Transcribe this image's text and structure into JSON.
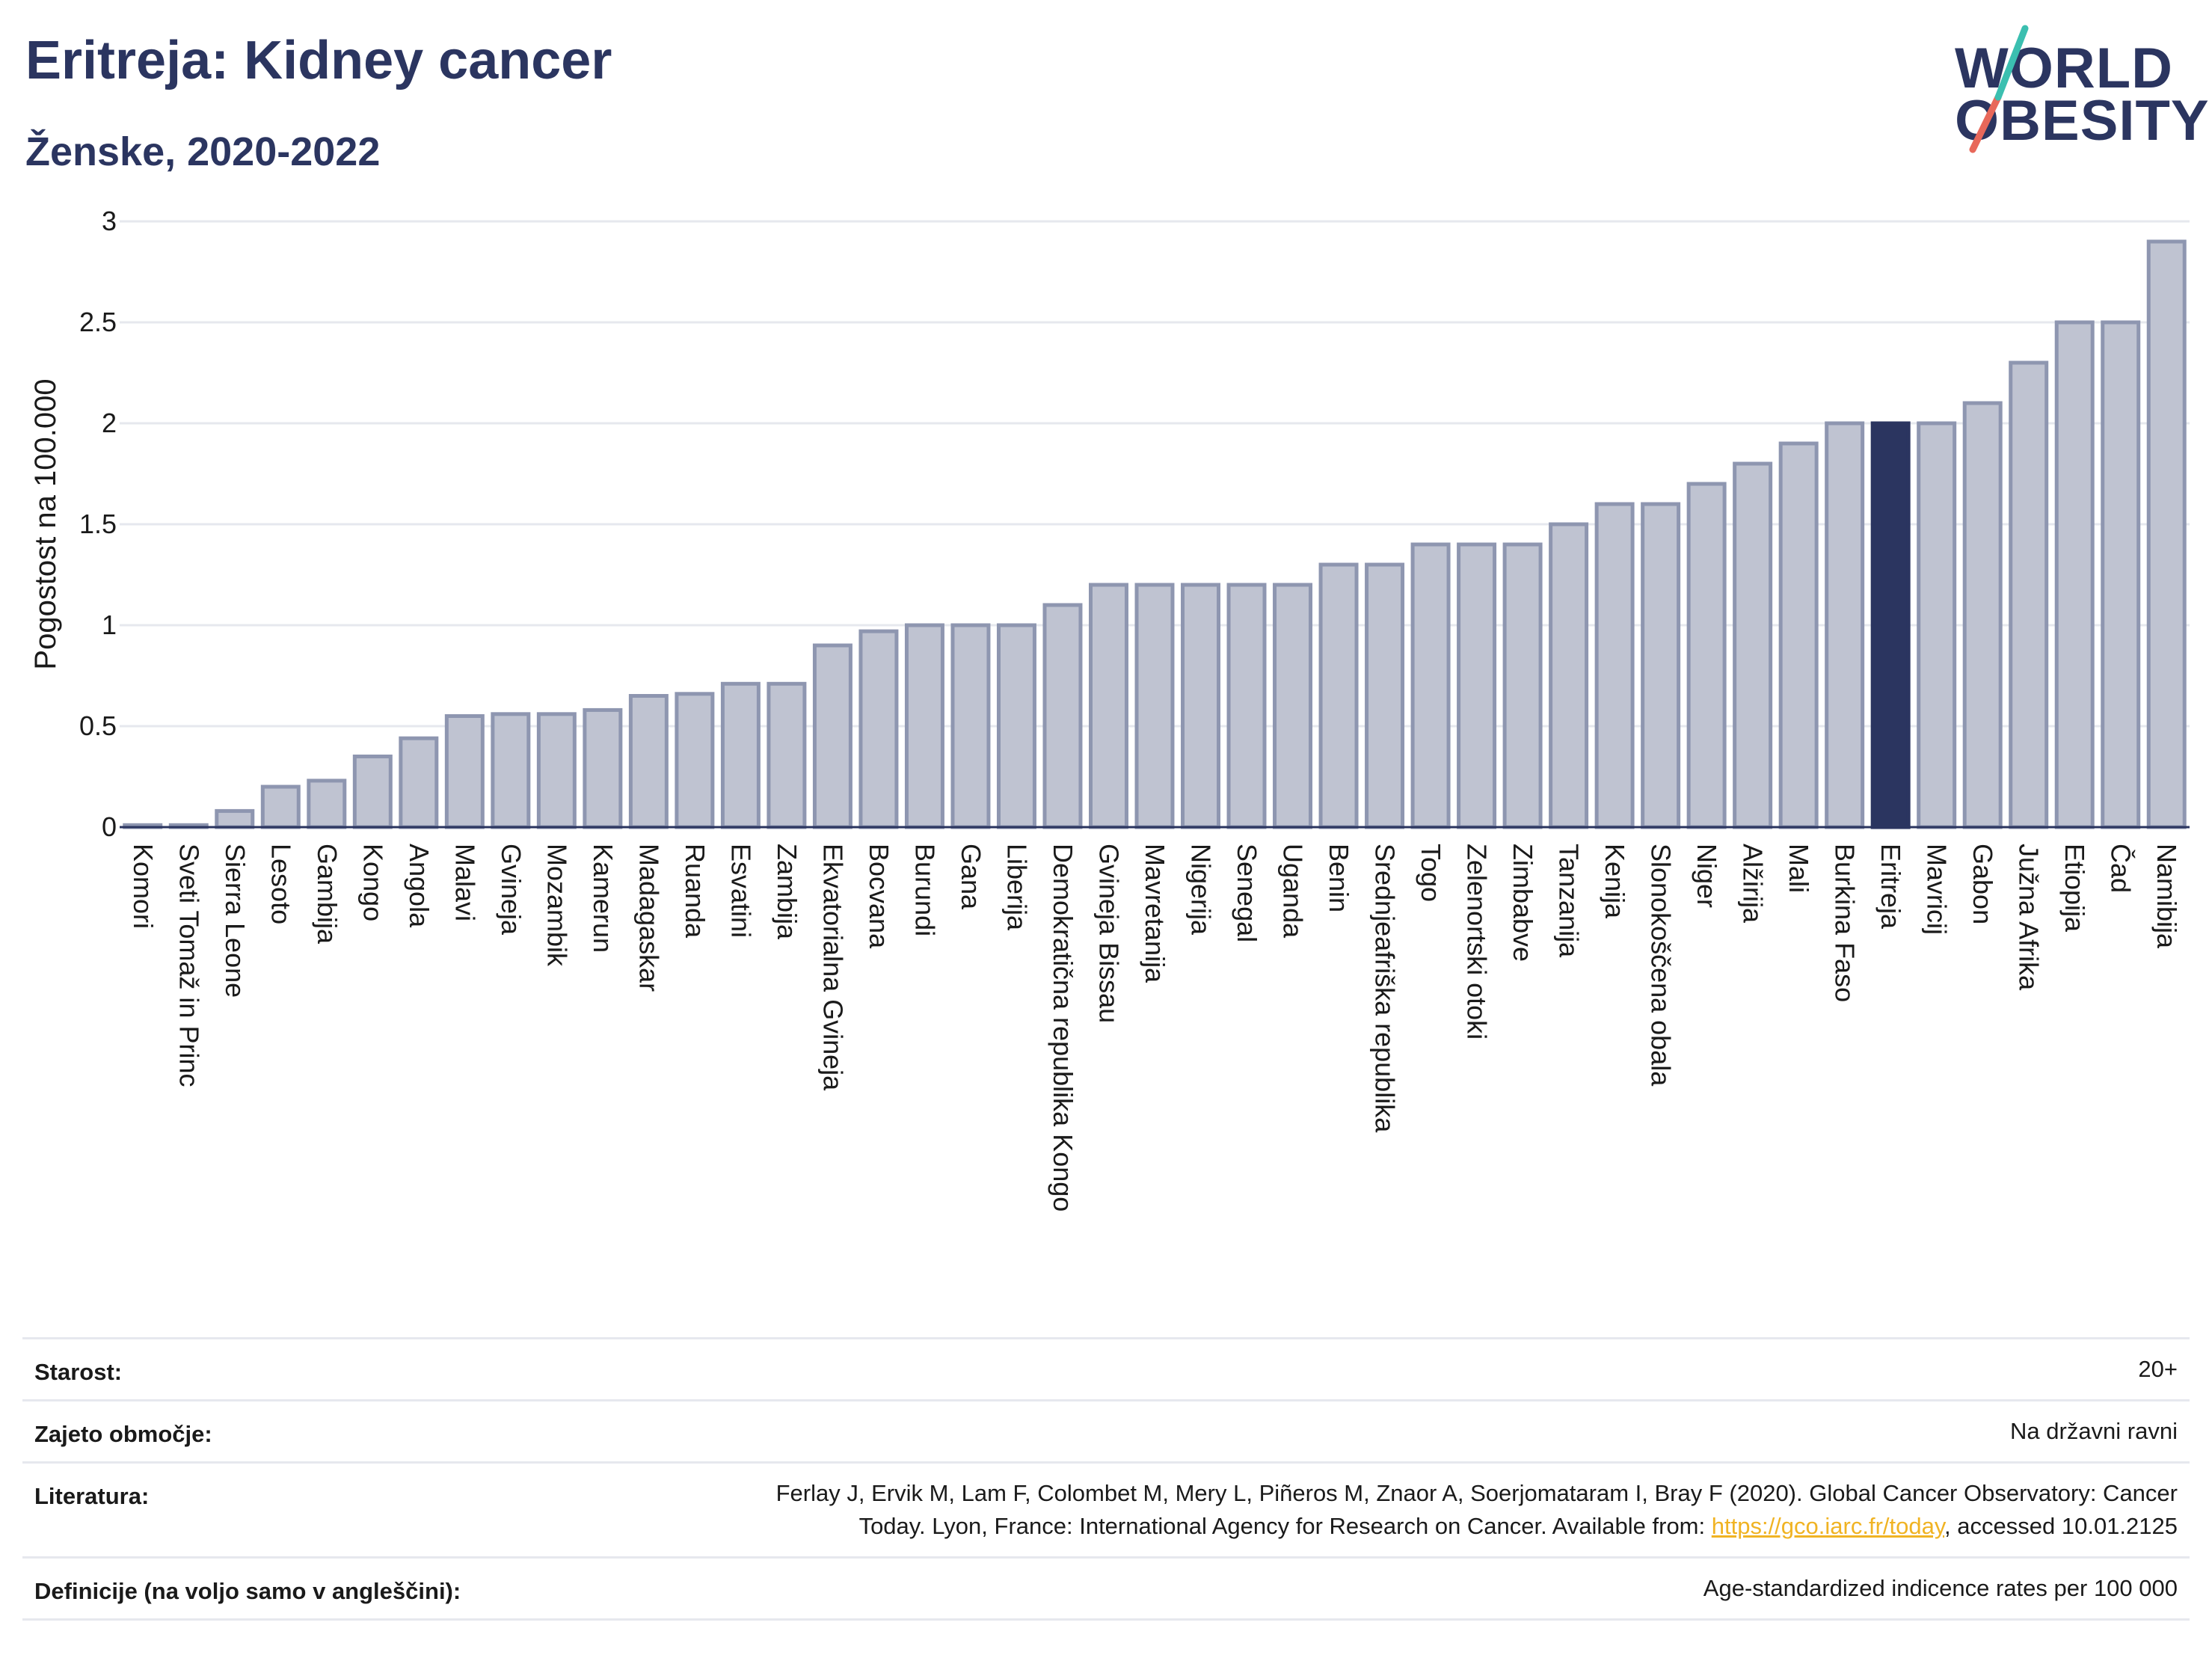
{
  "title": "Eritreja: Kidney cancer",
  "subtitle": "Ženske, 2020-2022",
  "logo": {
    "line1": "WORLD",
    "line2": "OBESITY",
    "slash_colors": [
      "#3bbfb0",
      "#e8685a"
    ]
  },
  "colors": {
    "bar": "#bfc3d1",
    "bar_stroke": "#8e96b0",
    "highlight": "#2b3560",
    "grid": "#e6e8ee",
    "axis": "#2b3560"
  },
  "chart_data": {
    "type": "bar",
    "title": "Eritreja: Kidney cancer",
    "subtitle": "Ženske, 2020-2022",
    "xlabel": "",
    "ylabel": "Pogostost na 100.000",
    "ylim": [
      0,
      3
    ],
    "yticks": [
      "0",
      "0.5",
      "1",
      "1.5",
      "2",
      "2.5",
      "3"
    ],
    "grid": true,
    "highlight": "Eritreja",
    "categories": [
      "Komori",
      "Sveti Tomaž in Princ",
      "Sierra Leone",
      "Lesoto",
      "Gambija",
      "Kongo",
      "Angola",
      "Malavi",
      "Gvineja",
      "Mozambik",
      "Kamerun",
      "Madagaskar",
      "Ruanda",
      "Esvatini",
      "Zambija",
      "Ekvatorialna Gvineja",
      "Bocvana",
      "Burundi",
      "Gana",
      "Liberija",
      "Demokratična republika Kongo",
      "Gvineja Bissau",
      "Mavretanija",
      "Nigerija",
      "Senegal",
      "Uganda",
      "Benin",
      "Srednjeafriška republika",
      "Togo",
      "Zelenortski otoki",
      "Zimbabve",
      "Tanzanija",
      "Kenija",
      "Slonokoščena obala",
      "Niger",
      "Alžirija",
      "Mali",
      "Burkina Faso",
      "Eritreja",
      "Mavricij",
      "Gabon",
      "Južna Afrika",
      "Etiopija",
      "Čad",
      "Namibija"
    ],
    "values": [
      0.01,
      0.01,
      0.08,
      0.2,
      0.23,
      0.35,
      0.44,
      0.55,
      0.56,
      0.56,
      0.58,
      0.65,
      0.66,
      0.71,
      0.71,
      0.9,
      0.97,
      1.0,
      1.0,
      1.0,
      1.1,
      1.2,
      1.2,
      1.2,
      1.2,
      1.2,
      1.3,
      1.3,
      1.4,
      1.4,
      1.4,
      1.5,
      1.6,
      1.6,
      1.7,
      1.8,
      1.9,
      2.0,
      2.0,
      2.0,
      2.1,
      2.3,
      2.5,
      2.5,
      2.9
    ]
  },
  "meta": [
    {
      "label": "Starost:",
      "value": "20+"
    },
    {
      "label": "Zajeto območje:",
      "value": "Na državni ravni"
    },
    {
      "label": "Literatura:",
      "value_line1": "Ferlay J, Ervik M, Lam F, Colombet M, Mery L, Piñeros M, Znaor A, Soerjomataram I, Bray F (2020). Global Cancer Observatory: Cancer",
      "value_line2_pre": "Today. Lyon, France: International Agency for Research on Cancer. Available from: ",
      "link": "https://gco.iarc.fr/today",
      "value_line2_post": ", accessed 10.01.2125"
    },
    {
      "label": "Definicije (na voljo samo v angleščini):",
      "value": "Age-standardized indicence rates per 100 000"
    }
  ]
}
